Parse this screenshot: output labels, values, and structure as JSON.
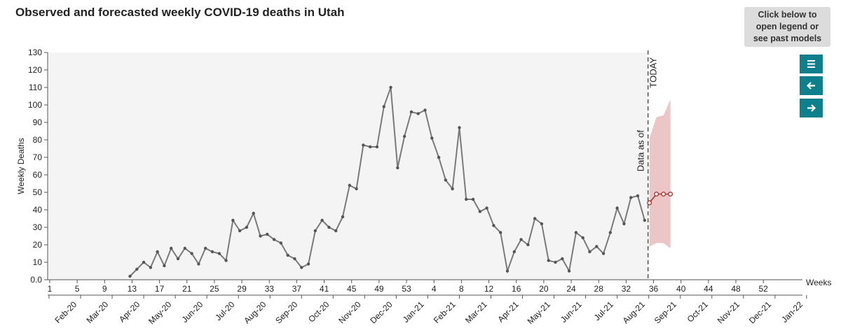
{
  "title": "Observed and forecasted weekly COVID-19 deaths in Utah",
  "controls": {
    "legend_line1": "Click below to",
    "legend_line2": "open legend or",
    "legend_line3": "see past models",
    "menu_icon": "menu-icon",
    "back_icon": "arrow-left-icon",
    "forward_icon": "arrow-right-icon",
    "accent_color": "#0e7f8c"
  },
  "chart_data": {
    "type": "line",
    "ylabel": "Weekly Deaths",
    "xlabel": "Weeks",
    "ylim": [
      0,
      130
    ],
    "xlim": [
      1,
      52
    ],
    "y_ticks": [
      "0.0",
      "10",
      "20",
      "30",
      "40",
      "50",
      "60",
      "70",
      "80",
      "90",
      "100",
      "110",
      "120",
      "130"
    ],
    "week_ticks": [
      "1",
      "5",
      "9",
      "13",
      "17",
      "21",
      "25",
      "29",
      "33",
      "37",
      "41",
      "45",
      "49",
      "53",
      "4",
      "8",
      "12",
      "16",
      "20",
      "24",
      "28",
      "32",
      "36",
      "40",
      "44",
      "48",
      "52"
    ],
    "date_ticks": [
      "Feb-20",
      "Mar-20",
      "Apr-20",
      "May-20",
      "Jun-20",
      "Jul-20",
      "Aug-20",
      "Sep-20",
      "Oct-20",
      "Nov-20",
      "Dec-20",
      "Jan-21",
      "Feb-21",
      "Mar-21",
      "Apr-21",
      "May-21",
      "Jun-21",
      "Jul-21",
      "Aug-21",
      "Sep-21",
      "Oct-21",
      "Nov-21",
      "Dec-21",
      "Jan-22"
    ],
    "today_label": "TODAY",
    "data_as_of_label": "Data as of",
    "plot_background": "#f4f4f4",
    "observed": {
      "color": "#7a7a7a",
      "values": [
        2,
        6,
        10,
        7,
        16,
        8,
        18,
        12,
        18,
        15,
        9,
        18,
        16,
        15,
        11,
        34,
        28,
        30,
        38,
        25,
        26,
        23,
        21,
        14,
        12,
        7,
        9,
        28,
        34,
        30,
        28,
        36,
        54,
        52,
        77,
        76,
        76,
        99,
        110,
        64,
        82,
        96,
        95,
        97,
        81,
        70,
        57,
        52,
        87,
        46,
        46,
        39,
        41,
        31,
        27,
        5,
        16,
        23,
        20,
        35,
        32,
        11,
        10,
        12,
        5,
        27,
        24,
        16,
        19,
        15,
        27,
        41,
        32,
        47,
        48,
        34
      ]
    },
    "forecast": {
      "color": "#a8322d",
      "band_color": "#e6b3b3",
      "median": [
        44,
        49,
        49,
        49
      ],
      "lower": [
        19,
        21,
        21,
        18
      ],
      "upper": [
        81,
        93,
        94,
        103
      ]
    }
  }
}
